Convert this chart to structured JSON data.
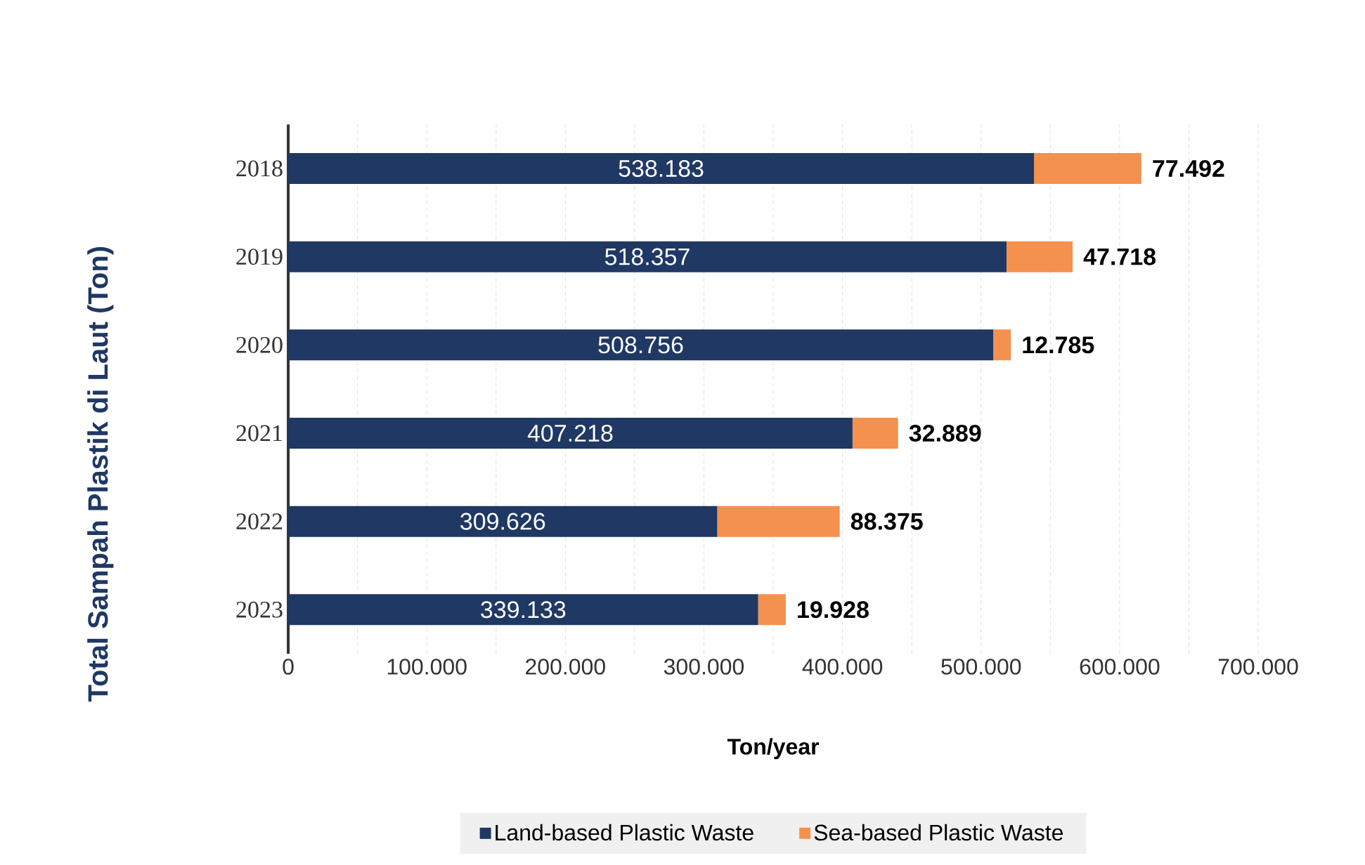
{
  "chart_data": {
    "type": "bar",
    "orientation": "horizontal",
    "stacked": true,
    "categories": [
      "2018",
      "2019",
      "2020",
      "2021",
      "2022",
      "2023"
    ],
    "series": [
      {
        "name": "Land-based Plastic Waste",
        "color": "#1f3864",
        "values": [
          538183,
          518357,
          508756,
          407218,
          309626,
          339133
        ],
        "value_labels": [
          "538.183",
          "518.357",
          "508.756",
          "407.218",
          "309.626",
          "339.133"
        ]
      },
      {
        "name": "Sea-based Plastic Waste",
        "color": "#f4914f",
        "values": [
          77492,
          47718,
          12785,
          32889,
          88375,
          19928
        ],
        "value_labels": [
          "77.492",
          "47.718",
          "12.785",
          "32.889",
          "88.375",
          "19.928"
        ]
      }
    ],
    "xlim": [
      0,
      700000
    ],
    "xticks": [
      0,
      {
        "value": 100000,
        "label": "100.000"
      },
      {
        "value": 200000,
        "label": "200.000"
      },
      {
        "value": 300000,
        "label": "300.000"
      },
      {
        "value": 400000,
        "label": "400.000"
      },
      {
        "value": 500000,
        "label": "500.000"
      },
      {
        "value": 600000,
        "label": "600.000"
      },
      {
        "value": 700000,
        "label": "700.000"
      }
    ],
    "xlabel": "Ton/year",
    "ylabel": "Total Sampah Plastik di Laut (Ton)",
    "grid": "x",
    "legend": "bottom"
  }
}
